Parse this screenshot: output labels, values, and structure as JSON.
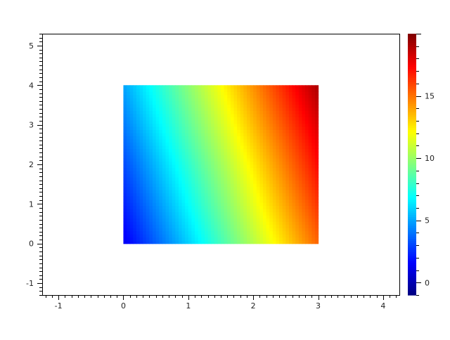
{
  "chart_data": {
    "type": "heatmap",
    "title": "",
    "xlabel": "",
    "ylabel": "",
    "xlim": [
      -1.25,
      4.25
    ],
    "ylim": [
      -1.3,
      5.3
    ],
    "x_ticks": [
      "-1",
      "0",
      "1",
      "2",
      "3",
      "4"
    ],
    "y_ticks": [
      "-1",
      "0",
      "1",
      "2",
      "3",
      "4",
      "5"
    ],
    "grid": false,
    "colormap": "jet",
    "x": [
      0,
      1,
      2,
      3
    ],
    "y": [
      0,
      1,
      2,
      3,
      4
    ],
    "z": [
      [
        1.3,
        5.9,
        10.6,
        15.3
      ],
      [
        2.2,
        6.9,
        11.6,
        16.3
      ],
      [
        3.1,
        7.8,
        12.5,
        17.2
      ],
      [
        4.1,
        8.8,
        13.5,
        18.1
      ],
      [
        5.0,
        9.7,
        14.4,
        19.1
      ]
    ],
    "colorbar": {
      "range": [
        -1,
        20
      ],
      "ticks": [
        "0",
        "5",
        "10",
        "15"
      ],
      "placement": "right"
    }
  }
}
